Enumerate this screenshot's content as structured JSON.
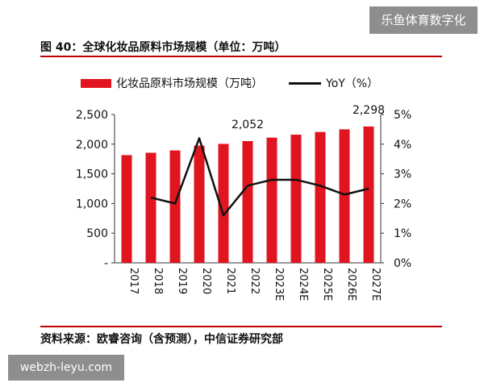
{
  "watermark": {
    "top": "乐鱼体育数字化",
    "bottom": "webzh-leyu.com"
  },
  "figure": {
    "title": "图 40：全球化妆品原料市场规模（单位：万吨）",
    "source": "资料来源：欧睿咨询（含预测），中信证券研究部"
  },
  "chart_data": {
    "type": "bar",
    "categories": [
      "2017",
      "2018",
      "2019",
      "2020",
      "2021",
      "2022",
      "2023E",
      "2024E",
      "2025E",
      "2026E",
      "2027E"
    ],
    "series": [
      {
        "name": "化妆品原料市场规模（万吨）",
        "type": "bar",
        "axis": "left",
        "color": "#e0151f",
        "values": [
          1815,
          1855,
          1895,
          1975,
          2005,
          2052,
          2110,
          2160,
          2205,
          2250,
          2298
        ]
      },
      {
        "name": "YoY（%）",
        "type": "line",
        "axis": "right",
        "color": "#111111",
        "values": [
          null,
          2.2,
          2.0,
          4.2,
          1.6,
          2.6,
          2.8,
          2.8,
          2.6,
          2.3,
          2.5
        ]
      }
    ],
    "data_labels": [
      {
        "category": "2022",
        "text": "2,052"
      },
      {
        "category": "2027E",
        "text": "2,298"
      }
    ],
    "y_left": {
      "min": 0,
      "max": 2500,
      "ticks": [
        "-",
        "500",
        "1,000",
        "1,500",
        "2,000",
        "2,500"
      ]
    },
    "y_right": {
      "min": 0,
      "max": 5,
      "ticks": [
        "0%",
        "1%",
        "2%",
        "3%",
        "4%",
        "5%"
      ]
    },
    "grid": false,
    "legend_position": "top"
  }
}
